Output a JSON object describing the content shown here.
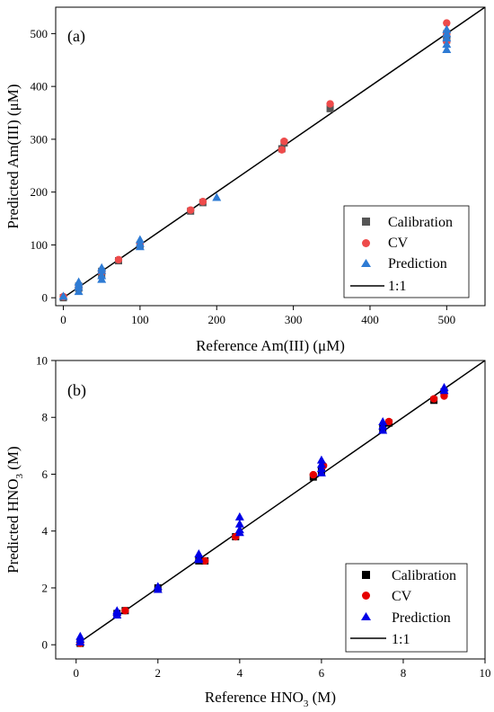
{
  "chart_data": [
    {
      "type": "scatter",
      "panel_label": "(a)",
      "xlabel": "Reference Am(III) (μM)",
      "ylabel": "Predicted Am(III) (μM)",
      "xlim": [
        -10,
        550
      ],
      "ylim": [
        -15,
        550
      ],
      "xticks": [
        0,
        100,
        200,
        300,
        400,
        500
      ],
      "yticks": [
        0,
        100,
        200,
        300,
        400,
        500
      ],
      "legend_position": "bottom-right",
      "identity_line": {
        "name": "1:1",
        "x": [
          0,
          550
        ],
        "y": [
          0,
          550
        ]
      },
      "series": [
        {
          "name": "Calibration",
          "marker": "square",
          "color": "#555555",
          "points": [
            [
              0,
              0
            ],
            [
              20,
              18
            ],
            [
              20,
              22
            ],
            [
              50,
              45
            ],
            [
              50,
              50
            ],
            [
              72,
              70
            ],
            [
              100,
              100
            ],
            [
              166,
              164
            ],
            [
              182,
              180
            ],
            [
              285,
              282
            ],
            [
              288,
              293
            ],
            [
              348,
              358
            ],
            [
              500,
              488
            ],
            [
              500,
              495
            ],
            [
              500,
              500
            ]
          ]
        },
        {
          "name": "CV",
          "marker": "circle",
          "color": "#ee4b4b",
          "points": [
            [
              0,
              2
            ],
            [
              20,
              20
            ],
            [
              50,
              48
            ],
            [
              72,
              72
            ],
            [
              100,
              102
            ],
            [
              166,
              166
            ],
            [
              182,
              182
            ],
            [
              285,
              280
            ],
            [
              288,
              296
            ],
            [
              348,
              367
            ],
            [
              500,
              520
            ],
            [
              500,
              498
            ],
            [
              500,
              485
            ]
          ]
        },
        {
          "name": "Prediction",
          "marker": "triangle",
          "color": "#2e7bd4",
          "points": [
            [
              0,
              3
            ],
            [
              20,
              12
            ],
            [
              20,
              20
            ],
            [
              20,
              25
            ],
            [
              20,
              30
            ],
            [
              50,
              35
            ],
            [
              50,
              42
            ],
            [
              50,
              52
            ],
            [
              50,
              57
            ],
            [
              100,
              97
            ],
            [
              100,
              103
            ],
            [
              100,
              110
            ],
            [
              200,
              190
            ],
            [
              500,
              470
            ],
            [
              500,
              480
            ],
            [
              500,
              492
            ],
            [
              500,
              500
            ],
            [
              500,
              508
            ]
          ]
        }
      ]
    },
    {
      "type": "scatter",
      "panel_label": "(b)",
      "xlabel": "Reference HNO₃ (M)",
      "ylabel": "Predicted HNO₃ (M)",
      "xlim": [
        -0.5,
        10
      ],
      "ylim": [
        -0.5,
        10
      ],
      "xticks": [
        0,
        2,
        4,
        6,
        8,
        10
      ],
      "yticks": [
        0,
        2,
        4,
        6,
        8,
        10
      ],
      "legend_position": "bottom-right",
      "identity_line": {
        "name": "1:1",
        "x": [
          0,
          10
        ],
        "y": [
          0,
          10
        ]
      },
      "series": [
        {
          "name": "Calibration",
          "marker": "square",
          "color": "#000000",
          "points": [
            [
              0.1,
              0.05
            ],
            [
              1.0,
              1.1
            ],
            [
              1.2,
              1.2
            ],
            [
              2.0,
              2.0
            ],
            [
              3.0,
              2.95
            ],
            [
              3.15,
              2.95
            ],
            [
              3.9,
              3.8
            ],
            [
              5.8,
              5.9
            ],
            [
              6.0,
              6.1
            ],
            [
              7.5,
              7.6
            ],
            [
              7.65,
              7.8
            ],
            [
              8.75,
              8.6
            ],
            [
              9.0,
              8.9
            ]
          ]
        },
        {
          "name": "CV",
          "marker": "circle",
          "color": "#e60000",
          "points": [
            [
              0.1,
              0.05
            ],
            [
              1.2,
              1.2
            ],
            [
              3.15,
              2.95
            ],
            [
              3.9,
              3.8
            ],
            [
              5.8,
              5.98
            ],
            [
              6.05,
              6.3
            ],
            [
              7.65,
              7.85
            ],
            [
              8.75,
              8.65
            ],
            [
              9.0,
              8.75
            ],
            [
              9.0,
              8.85
            ]
          ]
        },
        {
          "name": "Prediction",
          "marker": "triangle",
          "color": "#0000e6",
          "points": [
            [
              0.1,
              0.1
            ],
            [
              0.1,
              0.2
            ],
            [
              0.1,
              0.3
            ],
            [
              1.0,
              1.05
            ],
            [
              1.0,
              1.15
            ],
            [
              1.0,
              1.2
            ],
            [
              2.0,
              1.95
            ],
            [
              2.0,
              2.05
            ],
            [
              3.0,
              3.0
            ],
            [
              3.0,
              3.05
            ],
            [
              3.0,
              3.2
            ],
            [
              4.0,
              3.95
            ],
            [
              4.0,
              4.05
            ],
            [
              4.0,
              4.25
            ],
            [
              4.0,
              4.5
            ],
            [
              6.0,
              6.05
            ],
            [
              6.0,
              6.2
            ],
            [
              6.0,
              6.35
            ],
            [
              6.0,
              6.5
            ],
            [
              7.5,
              7.55
            ],
            [
              7.5,
              7.7
            ],
            [
              7.5,
              7.85
            ],
            [
              9.0,
              8.95
            ],
            [
              9.0,
              9.05
            ]
          ]
        }
      ]
    }
  ]
}
